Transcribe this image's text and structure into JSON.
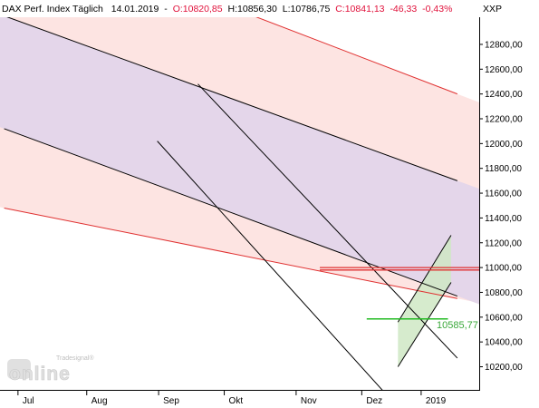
{
  "header": {
    "instrument": "DAX Perf. Index Täglich",
    "date": "14.01.2019",
    "open": "O:10820,85",
    "high": "H:10856,30",
    "low": "L:10786,75",
    "close": "C:10841,13",
    "change": "-46,33",
    "change_pct": "-0,43%",
    "currency": "XXP"
  },
  "colors": {
    "up": "#ffffff",
    "down": "#e0103a",
    "channel_purple": "#e4d6ea",
    "channel_pink": "#fde4e2",
    "channel_green": "#cfe8c4",
    "red_line": "#e03030",
    "green_line": "#22bb22",
    "label_green": "#3aa83a"
  },
  "watermark": {
    "brand_small": "Tradesignal®",
    "brand": "online"
  },
  "annotation": {
    "support_label": "10585,77"
  },
  "chart_data": {
    "type": "candlestick",
    "title": "DAX Perf. Index Täglich",
    "ylim": [
      10000,
      13000
    ],
    "y_ticks": [
      10200,
      10400,
      10600,
      10800,
      11000,
      11200,
      11400,
      11600,
      11800,
      12000,
      12200,
      12400,
      12600,
      12800
    ],
    "y_tick_labels": [
      "10200,00",
      "10400,00",
      "10600,00",
      "10800,00",
      "11000,00",
      "11200,00",
      "11400,00",
      "11600,00",
      "11800,00",
      "12000,00",
      "12200,00",
      "12400,00",
      "12600,00",
      "12800,00"
    ],
    "x_labels": [
      {
        "label": "Jul",
        "index": 5
      },
      {
        "label": "Aug",
        "index": 27
      },
      {
        "label": "Sep",
        "index": 50
      },
      {
        "label": "Okt",
        "index": 71
      },
      {
        "label": "Nov",
        "index": 94
      },
      {
        "label": "Dez",
        "index": 115
      },
      {
        "label": "2019",
        "index": 134
      }
    ],
    "candles": [],
    "horizontal_lines": [
      {
        "name": "resistance-11000",
        "value": 11000,
        "from_index": 101,
        "color": "red"
      },
      {
        "name": "resistance-10980",
        "value": 10980,
        "from_index": 101,
        "color": "red"
      },
      {
        "name": "support-10585",
        "value": 10585.77,
        "from_index": 116,
        "to_index": 142,
        "color": "green"
      }
    ],
    "trend_lines": [
      {
        "name": "purple-channel-upper",
        "points": [
          [
            0,
            13030
          ],
          [
            145,
            11700
          ]
        ],
        "color": "black"
      },
      {
        "name": "purple-channel-lower",
        "points": [
          [
            0,
            12120
          ],
          [
            145,
            10770
          ]
        ],
        "color": "black"
      },
      {
        "name": "pink-channel-upper",
        "points": [
          [
            0,
            13800
          ],
          [
            145,
            12400
          ]
        ],
        "color": "red"
      },
      {
        "name": "pink-channel-lower",
        "points": [
          [
            0,
            11480
          ],
          [
            145,
            10750
          ]
        ],
        "color": "red"
      },
      {
        "name": "short-trend-upper",
        "points": [
          [
            62,
            12480
          ],
          [
            145,
            10270
          ]
        ],
        "color": "black"
      },
      {
        "name": "short-trend-lower",
        "points": [
          [
            49,
            12020
          ],
          [
            125,
            9900
          ]
        ],
        "color": "black"
      },
      {
        "name": "green-channel-upper",
        "points": [
          [
            126,
            10560
          ],
          [
            143,
            11260
          ]
        ],
        "color": "black"
      },
      {
        "name": "green-channel-lower",
        "points": [
          [
            126,
            10200
          ],
          [
            143,
            10880
          ]
        ],
        "color": "black"
      }
    ]
  }
}
